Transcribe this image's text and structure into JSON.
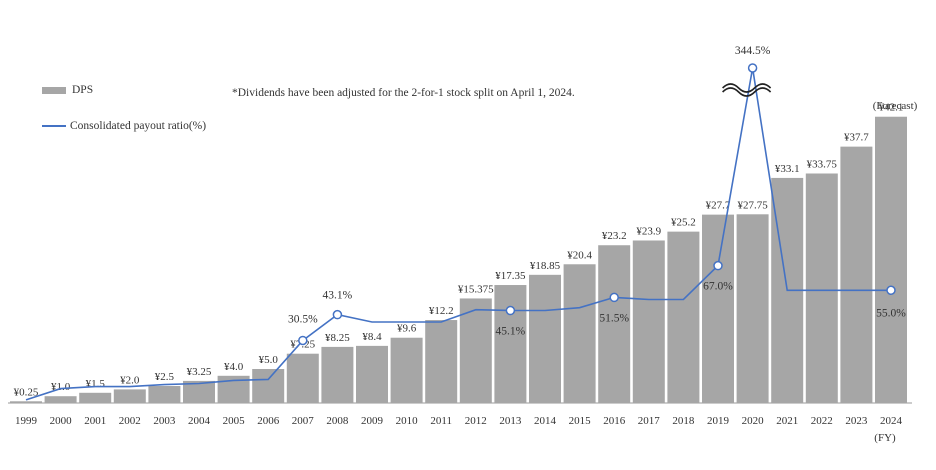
{
  "chart_data": {
    "type": "bar",
    "note": "*Dividends have been adjusted for the 2-for-1 stock split on April 1, 2024.",
    "legend": {
      "bar_label": "DPS",
      "line_label": "Consolidated payout ratio(%)"
    },
    "x_unit_label": "(FY)",
    "forecast_label": "(Forecast)",
    "categories": [
      "1999",
      "2000",
      "2001",
      "2002",
      "2003",
      "2004",
      "2005",
      "2006",
      "2007",
      "2008",
      "2009",
      "2010",
      "2011",
      "2012",
      "2013",
      "2014",
      "2015",
      "2016",
      "2017",
      "2018",
      "2019",
      "2020",
      "2021",
      "2022",
      "2023",
      "2024"
    ],
    "series": [
      {
        "name": "DPS",
        "type": "bar",
        "values": [
          0.25,
          1.0,
          1.5,
          2.0,
          2.5,
          3.25,
          4.0,
          5.0,
          7.25,
          8.25,
          8.4,
          9.6,
          12.2,
          15.375,
          17.35,
          18.85,
          20.4,
          23.2,
          23.9,
          25.2,
          27.7,
          27.75,
          33.1,
          33.75,
          37.7,
          42.1
        ],
        "labels": [
          "¥0.25",
          "¥1.0",
          "¥1.5",
          "¥2.0",
          "¥2.5",
          "¥3.25",
          "¥4.0",
          "¥5.0",
          "¥7.25",
          "¥8.25",
          "¥8.4",
          "¥9.6",
          "¥12.2",
          "¥15.375",
          "¥17.35",
          "¥18.85",
          "¥20.4",
          "¥23.2",
          "¥23.9",
          "¥25.2",
          "¥27.7",
          "¥27.75",
          "¥33.1",
          "¥33.75",
          "¥37.7",
          "¥42.1"
        ]
      },
      {
        "name": "Consolidated payout ratio(%)",
        "type": "line",
        "values": [
          1.5,
          7.0,
          8.0,
          8.0,
          9.0,
          9.5,
          11.0,
          11.5,
          30.5,
          43.1,
          39.5,
          39.5,
          39.5,
          45.5,
          45.1,
          45.1,
          46.5,
          51.5,
          50.5,
          50.5,
          67.0,
          344.5,
          55.0,
          55.0,
          55.0,
          55.0
        ],
        "labeled_points": [
          {
            "index": 8,
            "label": "30.5%"
          },
          {
            "index": 9,
            "label": "43.1%"
          },
          {
            "index": 14,
            "label": "45.1%"
          },
          {
            "index": 17,
            "label": "51.5%"
          },
          {
            "index": 20,
            "label": "67.0%"
          },
          {
            "index": 21,
            "label": "344.5%"
          },
          {
            "index": 25,
            "label": "55.0%"
          }
        ]
      }
    ],
    "axis_break": {
      "series": "Consolidated payout ratio(%)",
      "index": 21
    },
    "colors": {
      "bar": "#a6a6a6",
      "line": "#4472c4",
      "axis": "#999999",
      "text": "#333333"
    },
    "legend_position": "top-left",
    "grid": false
  }
}
